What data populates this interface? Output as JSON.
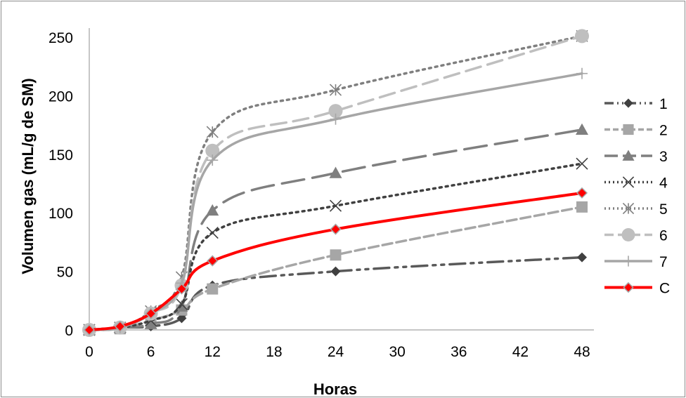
{
  "chart_data": {
    "type": "line",
    "xlabel": "Horas",
    "ylabel": "Volumen gas (mL/g de SM)",
    "x_ticks": [
      0,
      6,
      12,
      18,
      24,
      30,
      36,
      42,
      48
    ],
    "y_ticks": [
      0,
      50,
      100,
      150,
      200,
      250
    ],
    "xlim": [
      0,
      48
    ],
    "ylim": [
      0,
      250
    ],
    "x": [
      0,
      3,
      6,
      9,
      12,
      24,
      48
    ],
    "legend_position": "right",
    "grid": false,
    "series": [
      {
        "name": "1",
        "values": [
          0,
          2,
          3,
          10,
          38,
          50,
          62
        ],
        "color": "#595959",
        "dash": "22,8,4,8,4,8",
        "marker": "diamond"
      },
      {
        "name": "2",
        "values": [
          0,
          1,
          8,
          17,
          35,
          64,
          105
        ],
        "color": "#a6a6a6",
        "dash": "14,6",
        "marker": "square"
      },
      {
        "name": "3",
        "values": [
          0,
          2,
          5,
          20,
          102,
          134,
          171
        ],
        "color": "#7f7f7f",
        "dash": "32,12",
        "marker": "triangle"
      },
      {
        "name": "4",
        "values": [
          0,
          2,
          8,
          22,
          83,
          106,
          142
        ],
        "color": "#404040",
        "dash": "3,6",
        "marker": "x"
      },
      {
        "name": "5",
        "values": [
          0,
          2,
          16,
          45,
          169,
          205,
          251
        ],
        "color": "#7f7f7f",
        "dash": "3,6",
        "marker": "asterisk"
      },
      {
        "name": "6",
        "values": [
          0,
          2,
          14,
          38,
          153,
          187,
          251
        ],
        "color": "#bfbfbf",
        "dash": "22,10",
        "marker": "circle"
      },
      {
        "name": "7",
        "values": [
          0,
          2,
          14,
          40,
          145,
          180,
          219
        ],
        "color": "#a6a6a6",
        "dash": "",
        "marker": "plus"
      },
      {
        "name": "C",
        "values": [
          0,
          3,
          14,
          35,
          59,
          86,
          117
        ],
        "color": "#ff0000",
        "dash": "",
        "marker": "diamond-red"
      }
    ]
  }
}
